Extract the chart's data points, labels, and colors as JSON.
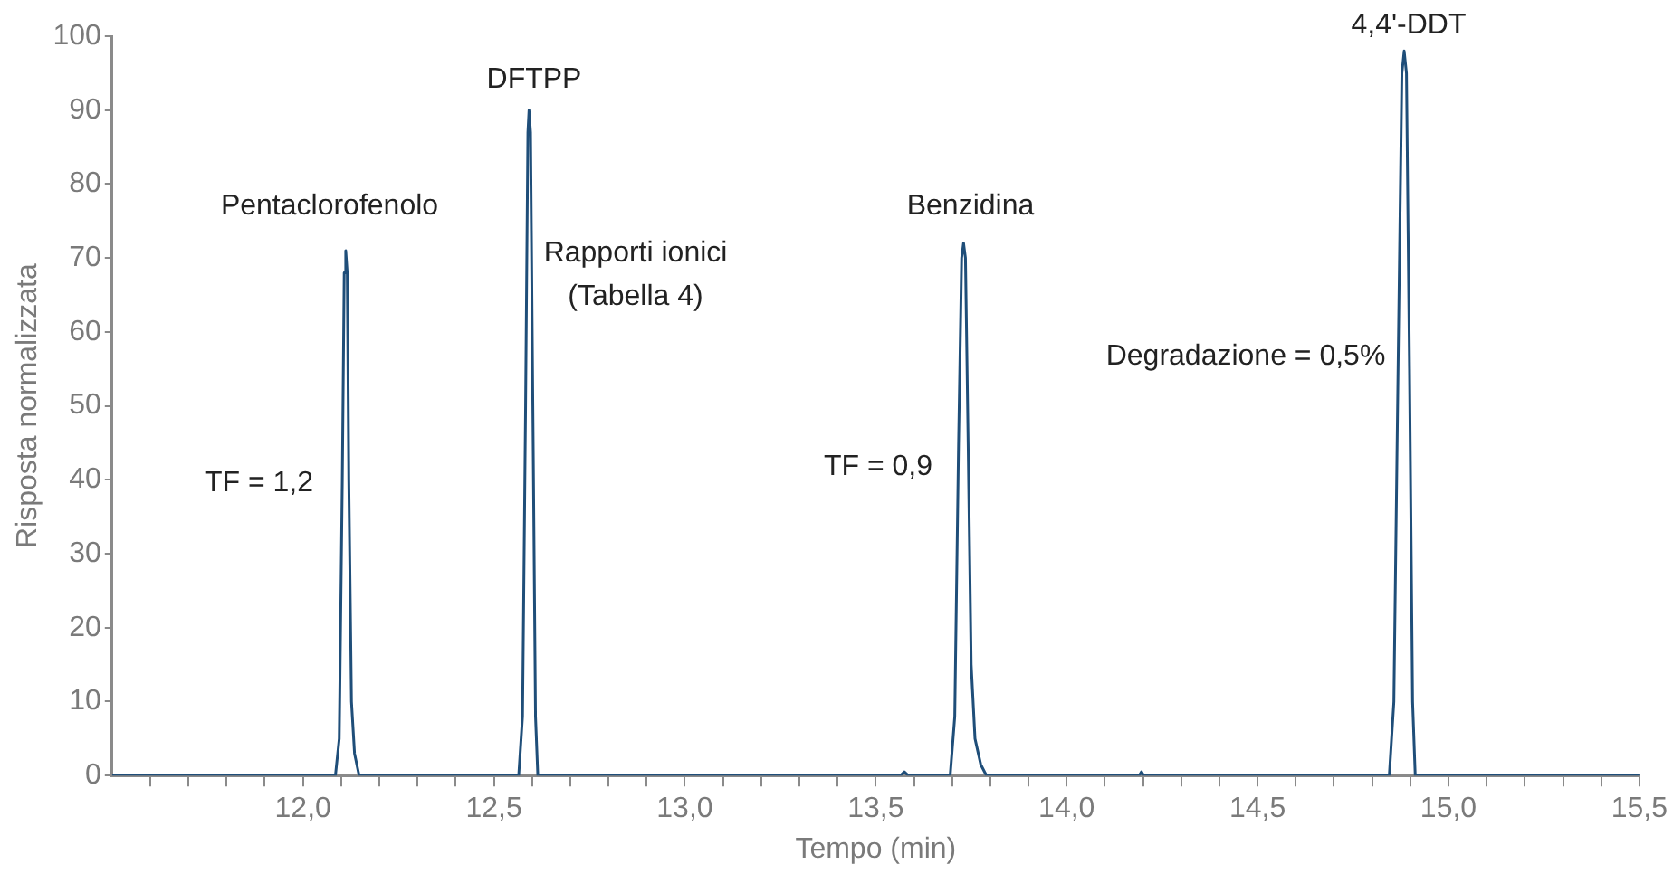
{
  "chart_data": {
    "type": "line",
    "xlabel": "Tempo (min)",
    "ylabel": "Risposta normalizzata",
    "xlim": [
      11.5,
      15.5
    ],
    "ylim": [
      0,
      100
    ],
    "xticks": [
      {
        "value": 11.6,
        "label": null
      },
      {
        "value": 11.7,
        "label": null
      },
      {
        "value": 11.8,
        "label": null
      },
      {
        "value": 11.9,
        "label": null
      },
      {
        "value": 12,
        "label": "12,0"
      },
      {
        "value": 12.1,
        "label": null
      },
      {
        "value": 12.2,
        "label": null
      },
      {
        "value": 12.3,
        "label": null
      },
      {
        "value": 12.4,
        "label": null
      },
      {
        "value": 12.5,
        "label": "12,5"
      },
      {
        "value": 12.6,
        "label": null
      },
      {
        "value": 12.7,
        "label": null
      },
      {
        "value": 12.8,
        "label": null
      },
      {
        "value": 12.9,
        "label": null
      },
      {
        "value": 13,
        "label": "13,0"
      },
      {
        "value": 13.1,
        "label": null
      },
      {
        "value": 13.2,
        "label": null
      },
      {
        "value": 13.3,
        "label": null
      },
      {
        "value": 13.4,
        "label": null
      },
      {
        "value": 13.5,
        "label": "13,5"
      },
      {
        "value": 13.6,
        "label": null
      },
      {
        "value": 13.7,
        "label": null
      },
      {
        "value": 13.8,
        "label": null
      },
      {
        "value": 13.9,
        "label": null
      },
      {
        "value": 14,
        "label": "14,0"
      },
      {
        "value": 14.1,
        "label": null
      },
      {
        "value": 14.2,
        "label": null
      },
      {
        "value": 14.3,
        "label": null
      },
      {
        "value": 14.4,
        "label": null
      },
      {
        "value": 14.5,
        "label": "14,5"
      },
      {
        "value": 14.6,
        "label": null
      },
      {
        "value": 14.7,
        "label": null
      },
      {
        "value": 14.8,
        "label": null
      },
      {
        "value": 14.9,
        "label": null
      },
      {
        "value": 15,
        "label": "15,0"
      },
      {
        "value": 15.1,
        "label": null
      },
      {
        "value": 15.2,
        "label": null
      },
      {
        "value": 15.3,
        "label": null
      },
      {
        "value": 15.4,
        "label": null
      },
      {
        "value": 15.5,
        "label": "15,5"
      }
    ],
    "yticks": [
      0,
      10,
      20,
      30,
      40,
      50,
      60,
      70,
      80,
      90,
      100
    ],
    "grid": false,
    "legend": false,
    "marker": "none",
    "line_style": "solid",
    "series": [
      {
        "color": "#1f4e79",
        "x": [
          11.5,
          12.085,
          12.095,
          12.103,
          12.108,
          12.112,
          12.116,
          12.12,
          12.127,
          12.135,
          12.147,
          12.565,
          12.575,
          12.583,
          12.589,
          12.592,
          12.596,
          12.602,
          12.609,
          12.615,
          13.565,
          13.575,
          13.585,
          13.695,
          13.707,
          13.717,
          13.725,
          13.73,
          13.735,
          13.742,
          13.75,
          13.76,
          13.775,
          13.79,
          14.19,
          14.196,
          14.202,
          14.845,
          14.857,
          14.868,
          14.878,
          14.884,
          14.89,
          14.898,
          14.906,
          14.913,
          15.5
        ],
        "values": [
          0,
          0,
          5,
          40,
          68,
          71,
          68,
          40,
          10,
          3,
          0,
          0,
          8,
          50,
          87,
          90,
          87,
          50,
          8,
          0,
          0,
          0.5,
          0,
          0,
          8,
          45,
          70,
          72,
          70,
          45,
          15,
          5,
          1.5,
          0,
          0,
          0.5,
          0,
          0,
          10,
          55,
          95,
          98,
          95,
          55,
          10,
          0,
          0
        ]
      }
    ],
    "annotations": [
      "Pentaclorofenolo",
      "DFTPP",
      "Rapporti ionici\n(Tabella 4)",
      "TF = 1,2",
      "Benzidina",
      "TF = 0,9",
      "Degradazione = 0,5%",
      "4,4'-DDT"
    ]
  }
}
